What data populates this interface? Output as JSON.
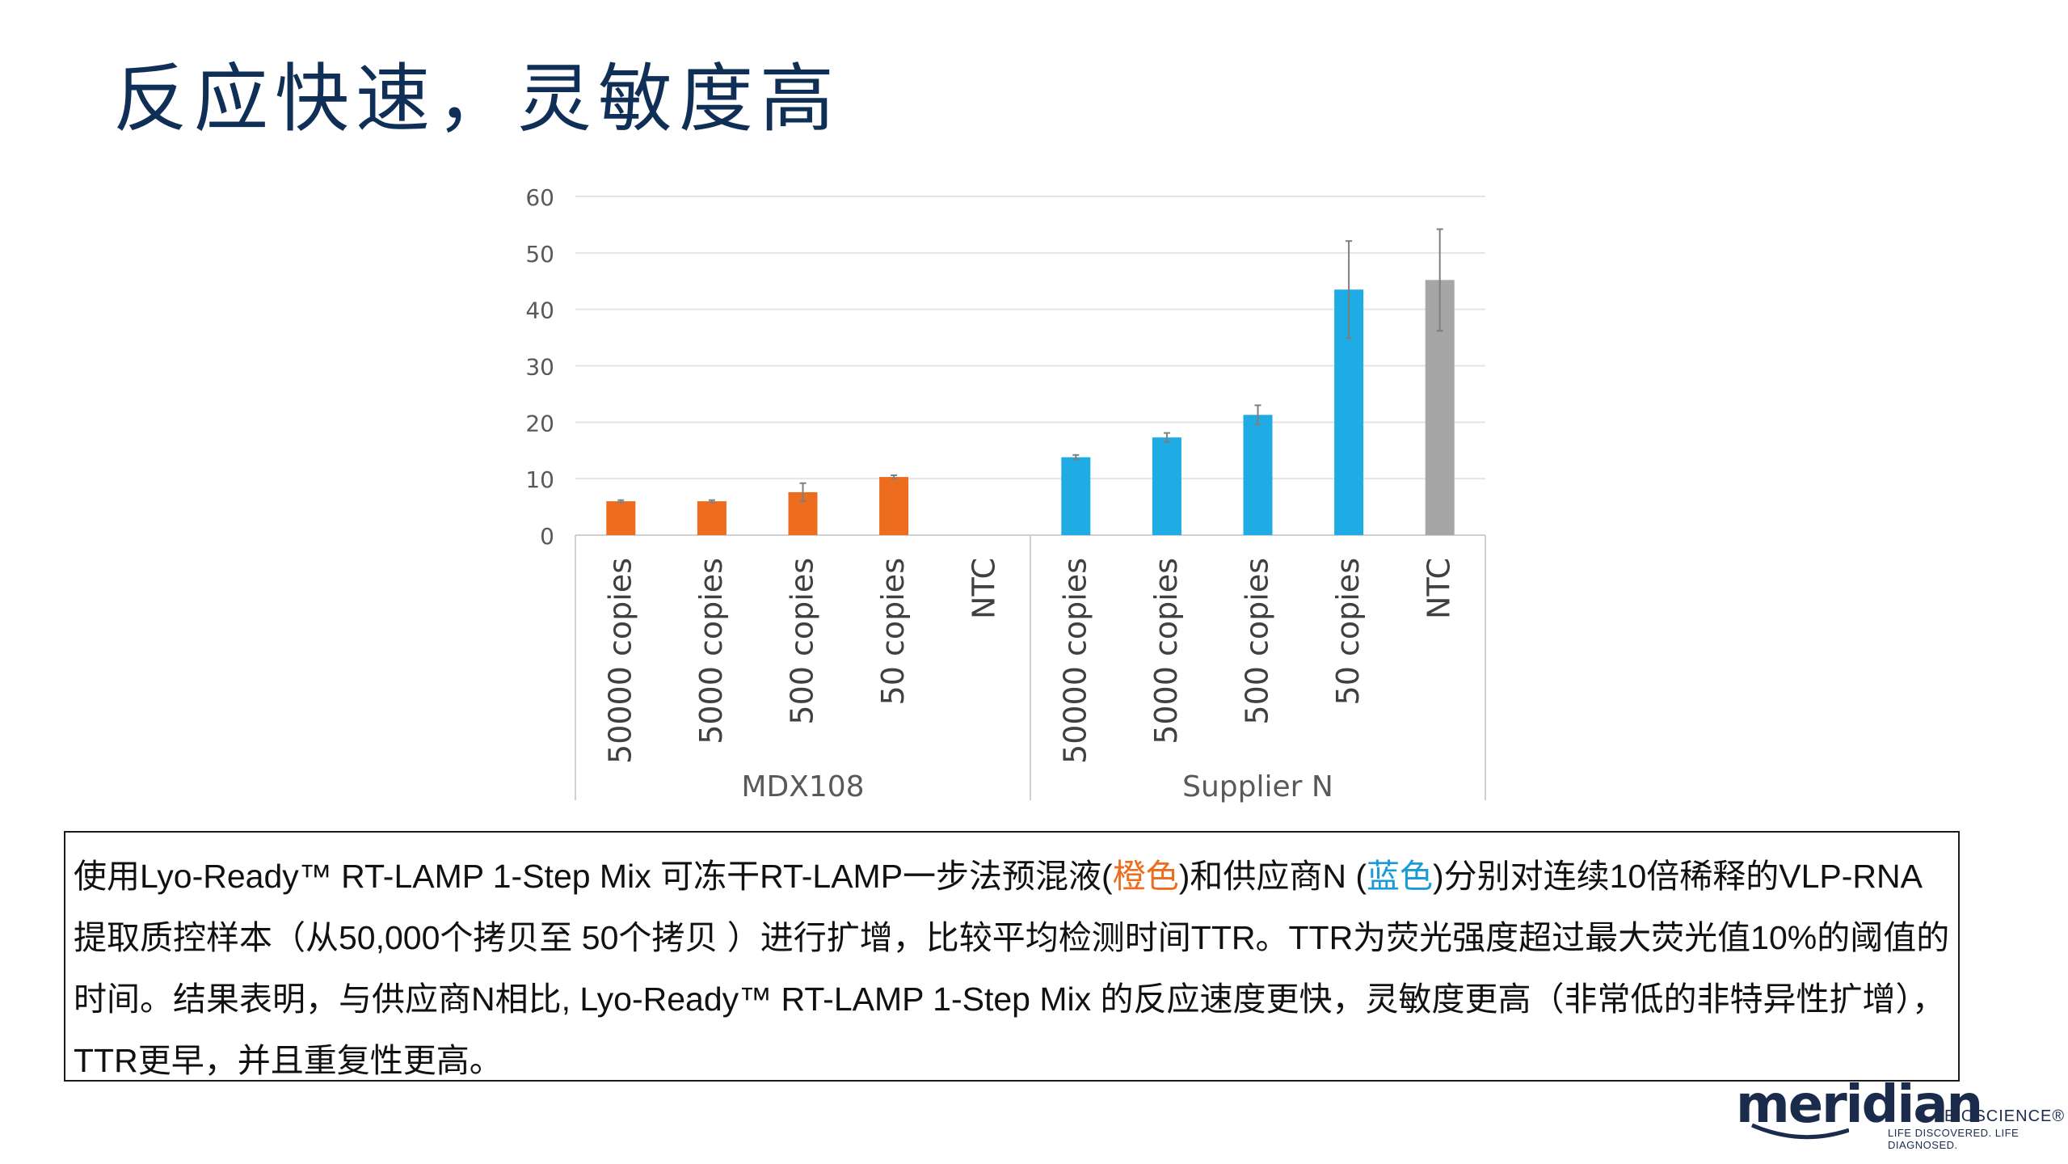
{
  "slide": {
    "title": "反应快速，灵敏度高"
  },
  "chart_data": {
    "type": "bar",
    "title": "",
    "xlabel": "",
    "ylabel": "",
    "ylim": [
      0,
      60
    ],
    "yticks": [
      0,
      10,
      20,
      30,
      40,
      50,
      60
    ],
    "grid": true,
    "groups": [
      {
        "name": "MDX108",
        "color": "#ee6c1e",
        "categories": [
          "50000 copies",
          "5000 copies",
          "500 copies",
          "50 copies",
          "NTC"
        ],
        "values": [
          6.0,
          6.0,
          7.6,
          10.3,
          0
        ],
        "errors": [
          0.2,
          0.2,
          1.6,
          0.3,
          0
        ]
      },
      {
        "name": "Supplier N",
        "color": "#1fabe3",
        "categories": [
          "50000 copies",
          "5000 copies",
          "500 copies",
          "50 copies",
          "NTC"
        ],
        "values": [
          13.8,
          17.3,
          21.3,
          43.5,
          45.2
        ],
        "errors": [
          0.4,
          0.8,
          1.7,
          8.6,
          9.0
        ],
        "ntc_color": "#a6a6a6"
      }
    ]
  },
  "caption": {
    "p1": "使用Lyo-Ready™ RT-LAMP 1-Step Mix 可冻干RT-LAMP一步法预混液(",
    "orange": "橙色",
    "p2": ")和供应商N (",
    "blue": "蓝色",
    "p3": ")分别对连续10倍稀释的VLP-RNA提取质控样本（从50,000个拷贝至 50个拷贝 ）进行扩增，比较平均检测时间TTR。TTR为荧光强度超过最大荧光值10%的阈值的时间。结果表明，与供应商N相比, Lyo-Ready™ RT-LAMP 1-Step Mix 的反应速度更快，灵敏度更高（非常低的非特异性扩增），TTR更早，并且重复性更高。"
  },
  "logo": {
    "word": "meridian",
    "bio": "BIOSCIENCE®",
    "tag": "LIFE DISCOVERED. LIFE DIAGNOSED.",
    "color": "#1b2b4b"
  }
}
